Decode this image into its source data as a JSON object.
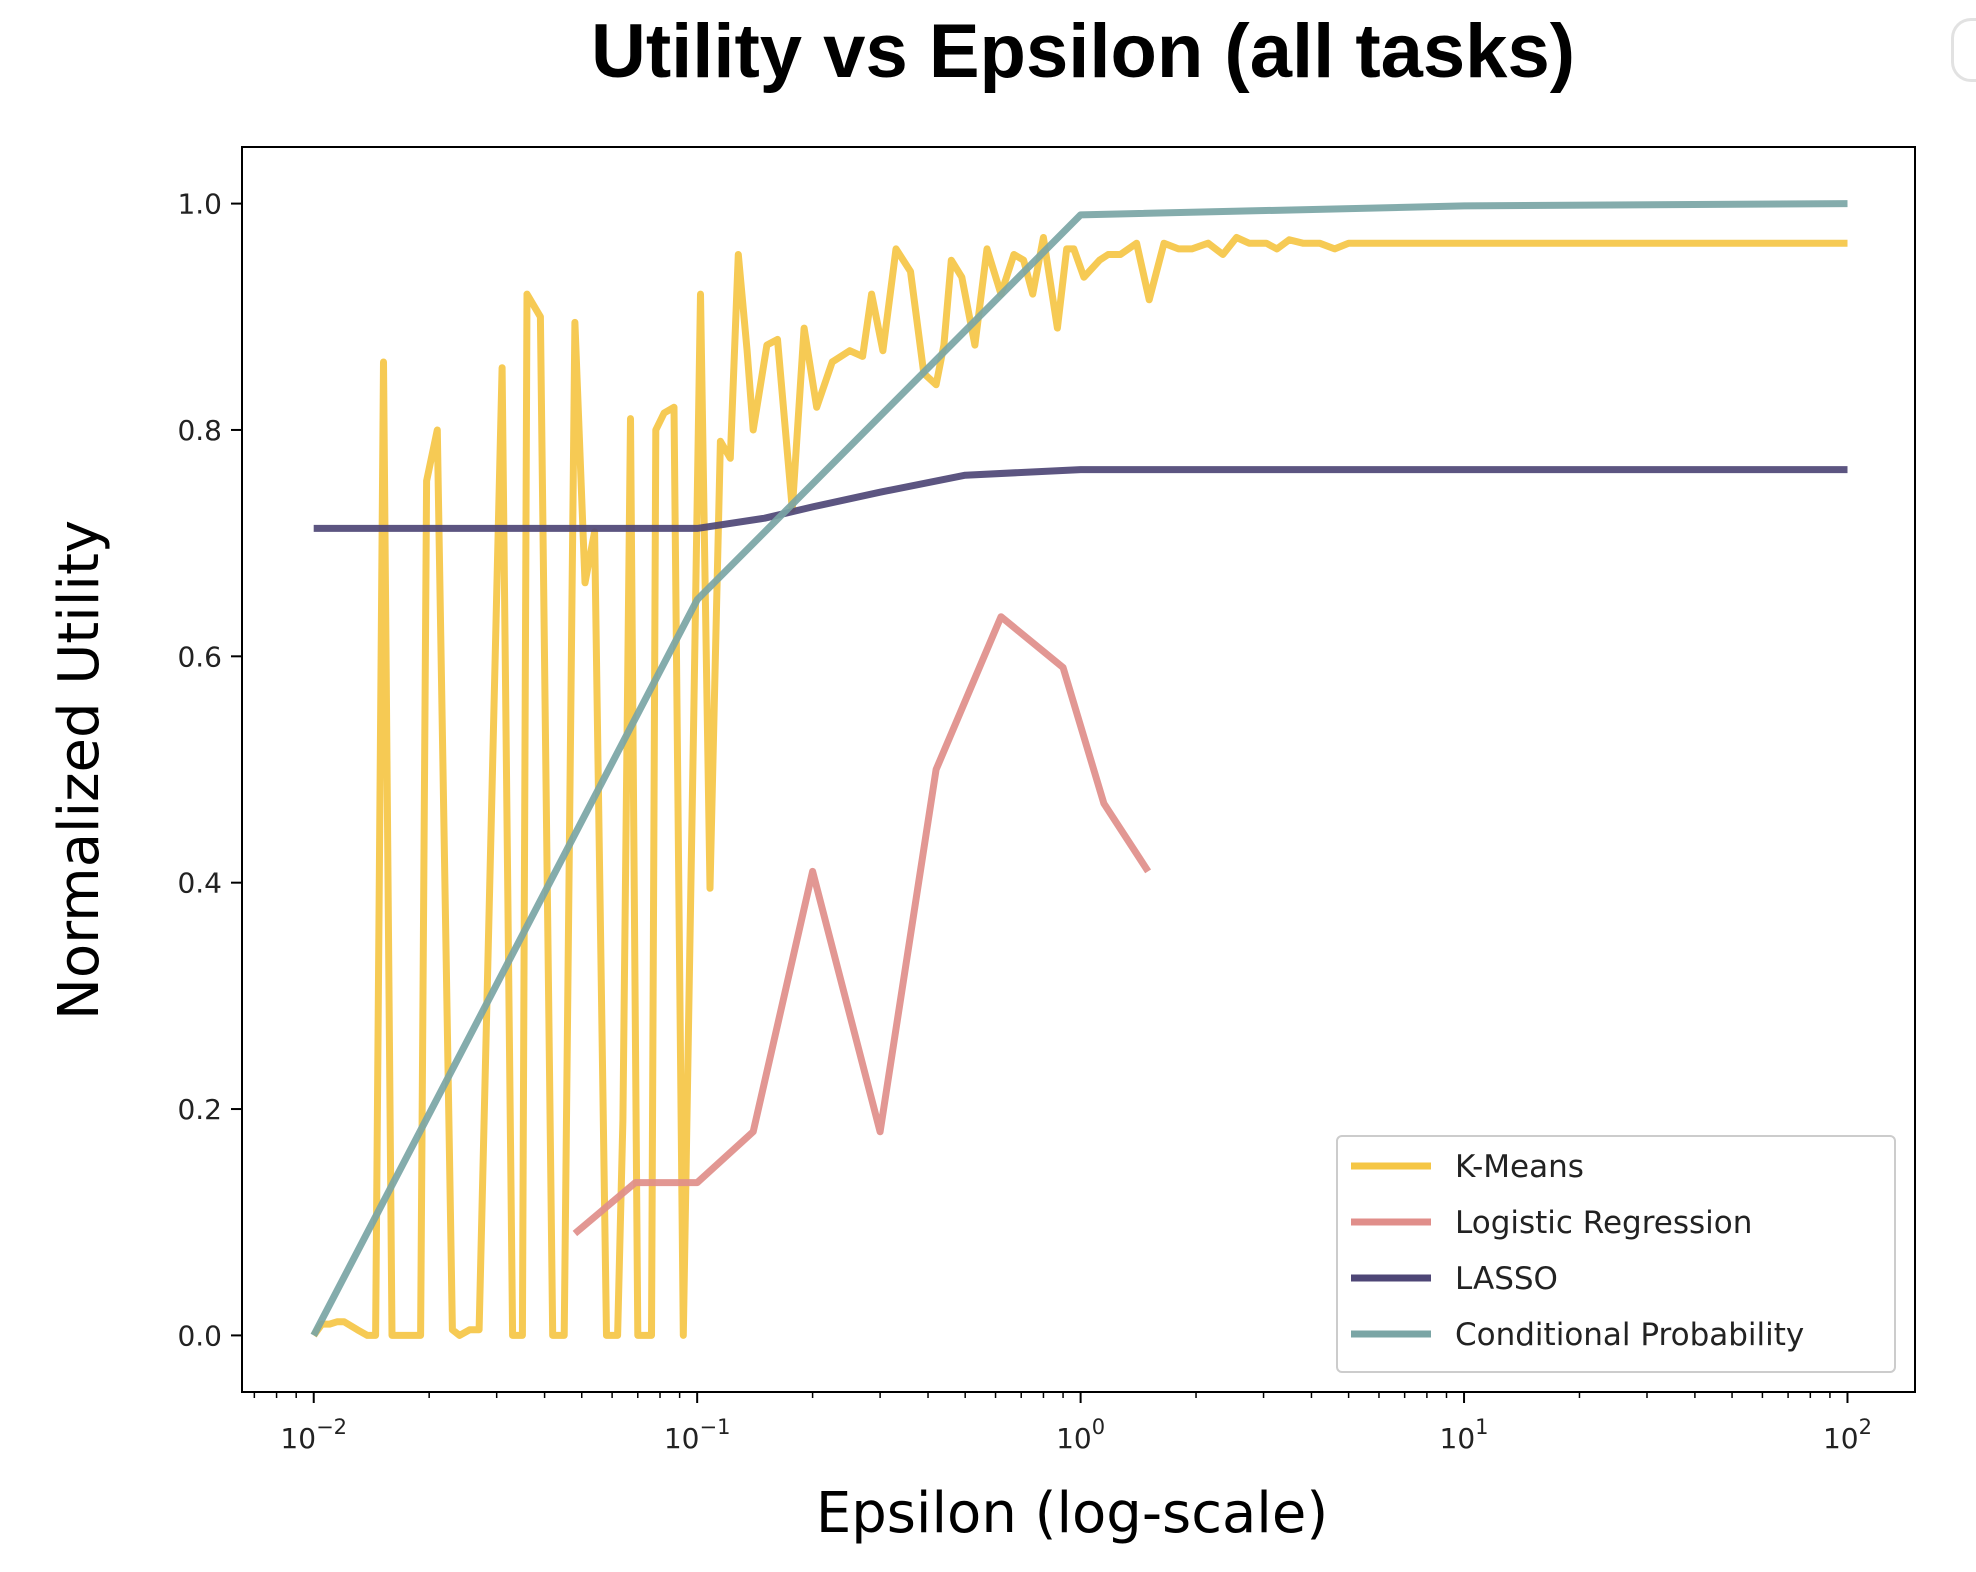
{
  "chart_data": {
    "type": "line",
    "title": "Utility vs Epsilon (all tasks)",
    "xlabel": "Epsilon (log-scale)",
    "ylabel": "Normalized Utility",
    "xscale": "log",
    "xlim": [
      0.0065,
      150
    ],
    "ylim": [
      -0.05,
      1.05
    ],
    "x_ticks": [
      {
        "value": 0.01,
        "base": "10",
        "exp": "−2"
      },
      {
        "value": 0.1,
        "base": "10",
        "exp": "−1"
      },
      {
        "value": 1,
        "base": "10",
        "exp": "0"
      },
      {
        "value": 10,
        "base": "10",
        "exp": "1"
      },
      {
        "value": 100,
        "base": "10",
        "exp": "2"
      }
    ],
    "y_ticks": [
      "0.0",
      "0.2",
      "0.4",
      "0.6",
      "0.8",
      "1.0"
    ],
    "grid": false,
    "legend_position": "lower-right",
    "series": [
      {
        "name": "K-Means",
        "color": "#f5c645",
        "x": [
          0.01,
          0.0105,
          0.011,
          0.0115,
          0.012,
          0.013,
          0.0138,
          0.0145,
          0.0152,
          0.016,
          0.0175,
          0.019,
          0.0197,
          0.021,
          0.023,
          0.024,
          0.0255,
          0.027,
          0.031,
          0.033,
          0.035,
          0.036,
          0.039,
          0.042,
          0.045,
          0.048,
          0.051,
          0.054,
          0.058,
          0.062,
          0.064,
          0.067,
          0.07,
          0.076,
          0.078,
          0.082,
          0.087,
          0.092,
          0.098,
          0.102,
          0.108,
          0.115,
          0.122,
          0.128,
          0.135,
          0.14,
          0.152,
          0.162,
          0.177,
          0.19,
          0.205,
          0.225,
          0.25,
          0.27,
          0.285,
          0.305,
          0.33,
          0.36,
          0.39,
          0.42,
          0.44,
          0.46,
          0.49,
          0.53,
          0.57,
          0.62,
          0.67,
          0.71,
          0.75,
          0.8,
          0.87,
          0.92,
          0.96,
          1.02,
          1.12,
          1.18,
          1.27,
          1.4,
          1.51,
          1.65,
          1.8,
          1.95,
          2.15,
          2.35,
          2.55,
          2.75,
          2.9,
          3.05,
          3.25,
          3.5,
          3.8,
          4.2,
          4.6,
          5.0,
          5.6,
          6.2,
          6.8,
          7.5,
          9.0,
          11,
          13,
          16,
          20,
          30,
          50,
          100
        ],
        "y": [
          0.0,
          0.01,
          0.01,
          0.012,
          0.012,
          0.005,
          0.0,
          0.0,
          0.86,
          0.0,
          0.0,
          0.0,
          0.755,
          0.8,
          0.005,
          0.0,
          0.005,
          0.005,
          0.855,
          0.0,
          0.0,
          0.92,
          0.9,
          0.0,
          0.0,
          0.895,
          0.665,
          0.71,
          0.0,
          0.0,
          0.19,
          0.81,
          0.0,
          0.0,
          0.8,
          0.815,
          0.82,
          0.0,
          0.55,
          0.92,
          0.395,
          0.79,
          0.775,
          0.955,
          0.87,
          0.8,
          0.875,
          0.88,
          0.73,
          0.89,
          0.82,
          0.86,
          0.87,
          0.865,
          0.92,
          0.87,
          0.96,
          0.94,
          0.85,
          0.84,
          0.875,
          0.95,
          0.935,
          0.875,
          0.96,
          0.92,
          0.955,
          0.95,
          0.92,
          0.97,
          0.89,
          0.96,
          0.96,
          0.935,
          0.95,
          0.955,
          0.955,
          0.965,
          0.915,
          0.965,
          0.96,
          0.96,
          0.965,
          0.955,
          0.97,
          0.965,
          0.965,
          0.965,
          0.96,
          0.968,
          0.965,
          0.965,
          0.96,
          0.965,
          0.965,
          0.965,
          0.965,
          0.965,
          0.965,
          0.965,
          0.965,
          0.965,
          0.965,
          0.965,
          0.965,
          0.965
        ]
      },
      {
        "name": "Logistic Regression",
        "color": "#e08e8a",
        "x": [
          0.048,
          0.069,
          0.1,
          0.14,
          0.2,
          0.3,
          0.42,
          0.62,
          0.9,
          1.15,
          1.5
        ],
        "y": [
          0.09,
          0.135,
          0.135,
          0.18,
          0.41,
          0.18,
          0.5,
          0.635,
          0.59,
          0.47,
          0.41
        ]
      },
      {
        "name": "LASSO",
        "color": "#4e4676",
        "x": [
          0.01,
          0.1,
          0.15,
          0.2,
          0.3,
          0.5,
          1,
          10,
          100
        ],
        "y": [
          0.713,
          0.713,
          0.722,
          0.732,
          0.745,
          0.76,
          0.765,
          0.765,
          0.765
        ]
      },
      {
        "name": "Conditional Probability",
        "color": "#7aa5a5",
        "x": [
          0.01,
          0.1,
          1,
          10,
          100
        ],
        "y": [
          0.0,
          0.65,
          0.99,
          0.998,
          1.0
        ]
      }
    ]
  }
}
